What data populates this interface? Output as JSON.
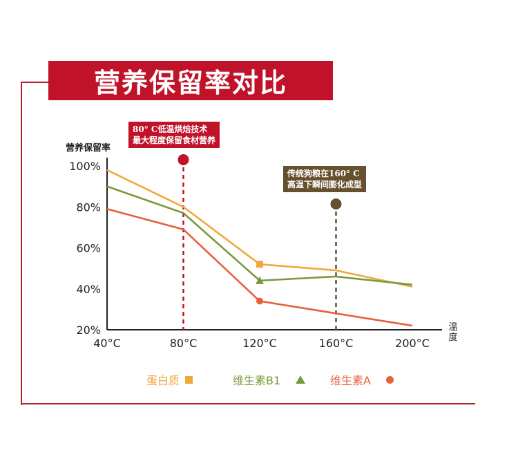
{
  "title": "营养保留率对比",
  "callouts": {
    "red": "80° C低温烘焙技术\n最大程度保留食材营养",
    "brown": "传统狗粮在160° C\n高温下瞬间膨化成型"
  },
  "colors": {
    "frame": "#b71f2e",
    "protein": "#f0a83a",
    "b1": "#7a9a3a",
    "a": "#e85f3c",
    "red_marker": "#c0132a",
    "brown_marker": "#66502d"
  },
  "chart_data": {
    "type": "line",
    "title": "营养保留率对比",
    "ylabel": "营养保留率",
    "xlabel": "温度",
    "x": [
      "40°C",
      "80°C",
      "120°C",
      "160°C",
      "200°C"
    ],
    "y_ticks": [
      "20%",
      "40%",
      "60%",
      "80%",
      "100%"
    ],
    "ylim": [
      20,
      100
    ],
    "series": [
      {
        "name": "蛋白质",
        "marker": "square",
        "values": [
          98,
          80,
          52,
          49,
          41
        ],
        "marker_index": 2
      },
      {
        "name": "维生素B1",
        "marker": "triangle",
        "values": [
          90,
          77,
          44,
          46,
          42
        ],
        "marker_index": 2
      },
      {
        "name": "维生素A",
        "marker": "circle",
        "values": [
          79,
          69,
          34,
          28,
          22
        ],
        "marker_index": 2
      }
    ],
    "vlines": [
      {
        "x": "80°C",
        "color": "#c0132a"
      },
      {
        "x": "160°C",
        "color": "#66502d"
      }
    ],
    "legend_position": "bottom"
  }
}
